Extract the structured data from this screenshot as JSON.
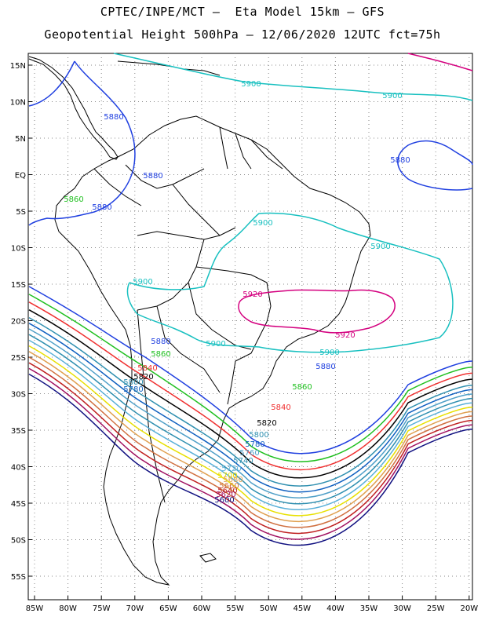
{
  "header": {
    "line1": "CPTEC/INPE/MCT –  Eta Model 15km – GFS",
    "line2": "Geopotential Height 500hPa – 12/06/2020 12UTC fct=75h"
  },
  "map": {
    "lat_labels": [
      "15N",
      "10N",
      "5N",
      "EQ",
      "5S",
      "10S",
      "15S",
      "20S",
      "25S",
      "30S",
      "35S",
      "40S",
      "45S",
      "50S",
      "55S"
    ],
    "lon_labels": [
      "85W",
      "80W",
      "75W",
      "70W",
      "65W",
      "60W",
      "55W",
      "50W",
      "45W",
      "40W",
      "35W",
      "30W",
      "25W",
      "20W"
    ],
    "lon_range": [
      -86,
      -20
    ],
    "lat_range": [
      -58,
      16
    ]
  },
  "contours": [
    {
      "value": "5920",
      "color": "#d4007f"
    },
    {
      "value": "5900",
      "color": "#18c0c0"
    },
    {
      "value": "5880",
      "color": "#2040e0"
    },
    {
      "value": "5860",
      "color": "#20c020"
    },
    {
      "value": "5840",
      "color": "#f03030"
    },
    {
      "value": "5820",
      "color": "#000000"
    },
    {
      "value": "5800",
      "color": "#3090b0"
    },
    {
      "value": "5780",
      "color": "#1060c0"
    },
    {
      "value": "5760",
      "color": "#50a0c8"
    },
    {
      "value": "5740",
      "color": "#2e8fb0"
    },
    {
      "value": "5720",
      "color": "#5ab0d8"
    },
    {
      "value": "5700",
      "color": "#e8e000"
    },
    {
      "value": "5680",
      "color": "#e0a050"
    },
    {
      "value": "5660",
      "color": "#d07040"
    },
    {
      "value": "5640",
      "color": "#c02020"
    },
    {
      "value": "5620",
      "color": "#a01060"
    },
    {
      "value": "5600",
      "color": "#101080"
    }
  ]
}
